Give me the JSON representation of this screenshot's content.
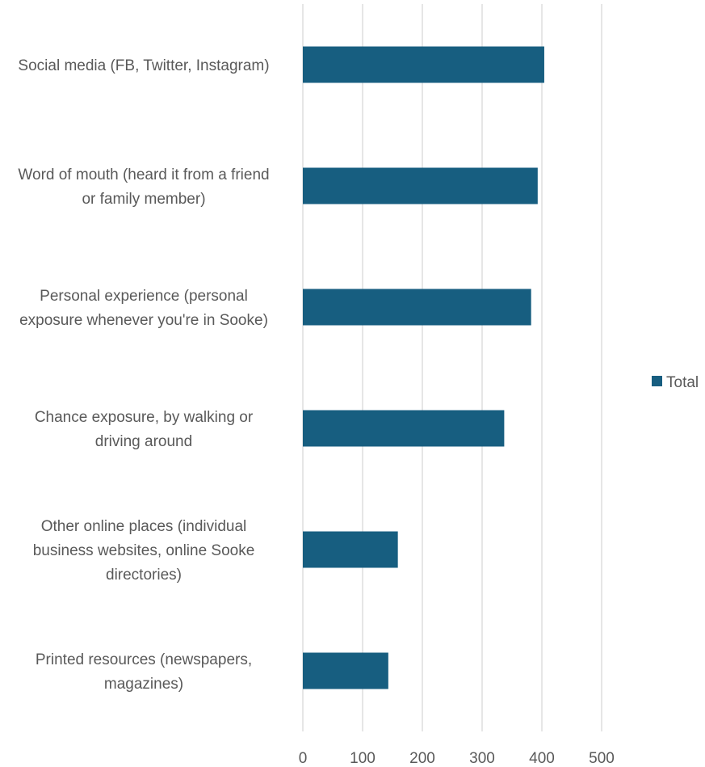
{
  "chart_data": {
    "type": "bar",
    "orientation": "horizontal",
    "categories": [
      [
        "Social media (FB, Twitter, Instagram)"
      ],
      [
        "Word of mouth (heard it from a friend",
        "or family member)"
      ],
      [
        "Personal experience (personal",
        "exposure whenever you're in Sooke)"
      ],
      [
        "Chance exposure, by walking or",
        "driving around"
      ],
      [
        "Other online places (individual",
        "business websites, online Sooke",
        "directories)"
      ],
      [
        "Printed resources (newspapers,",
        "magazines)"
      ]
    ],
    "series": [
      {
        "name": "Total",
        "color": "#175e80",
        "values": [
          404,
          393,
          382,
          337,
          159,
          143
        ]
      }
    ],
    "xlim": [
      0,
      500
    ],
    "xticks": [
      "0",
      "100",
      "200",
      "300",
      "400",
      "500"
    ],
    "grid": true,
    "legend": "right"
  }
}
